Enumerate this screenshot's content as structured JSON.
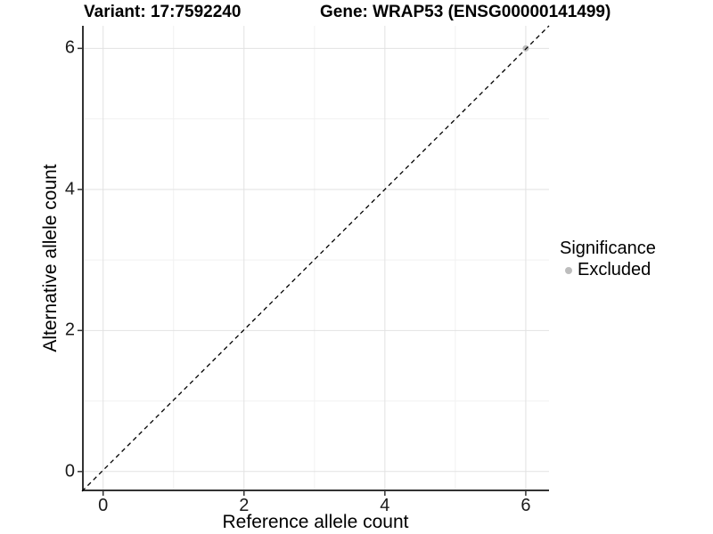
{
  "header": {
    "title_left": "Variant: 17:7592240",
    "title_right": "Gene: WRAP53 (ENSG00000141499)"
  },
  "legend": {
    "title": "Significance",
    "items": [
      {
        "label": "Excluded",
        "color": "#bdbdbd"
      }
    ]
  },
  "chart_data": {
    "type": "scatter",
    "title": "Variant: 17:7592240   Gene: WRAP53 (ENSG00000141499)",
    "xlabel": "Reference allele count",
    "ylabel": "Alternative allele count",
    "xlim": [
      -0.3,
      6.33
    ],
    "ylim": [
      -0.28,
      6.32
    ],
    "x_major_ticks": [
      0,
      2,
      4,
      6
    ],
    "y_major_ticks": [
      0,
      2,
      4,
      6
    ],
    "x_minor_ticks": [
      1,
      3,
      5
    ],
    "y_minor_ticks": [
      1,
      3,
      5
    ],
    "grid": "major+minor",
    "legend_position": "right",
    "series": [
      {
        "name": "Excluded",
        "color": "#bdbdbd",
        "marker": "circle",
        "points": [
          {
            "x": 6,
            "y": 6
          }
        ]
      }
    ],
    "reference_line": {
      "style": "dashed",
      "color": "#000000",
      "from": [
        -0.3,
        -0.28
      ],
      "to": [
        6.33,
        6.32
      ]
    }
  },
  "colors": {
    "grid_major": "#e2e2e2",
    "grid_minor": "#f1f1f1",
    "axis_line": "#333333",
    "tick_mark": "#333333",
    "point": "#bdbdbd",
    "text": "#000000",
    "background": "#ffffff"
  }
}
